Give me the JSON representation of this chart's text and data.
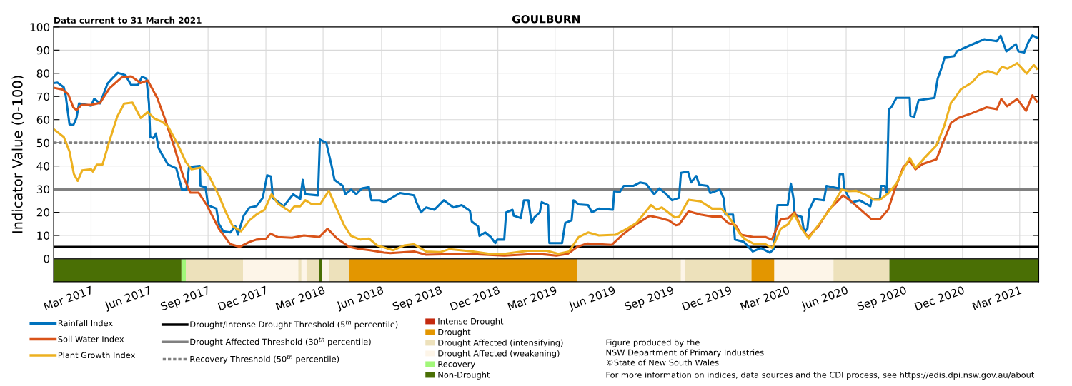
{
  "chart_data": {
    "type": "line",
    "title": "GOULBURN",
    "ylabel": "Indicator Value (0-100)",
    "annotations": [
      "Data current to 31 March 2021",
      "Figure produced by the\nNSW Department of Primary Industries\n©State of New South Wales",
      "For more information on indices, data sources and the CDI process, see https://edis.dpi.nsw.gov.au/about"
    ],
    "xlim": [
      "2017-01-01",
      "2021-03-31"
    ],
    "xticks": [
      {
        "value": "2017-03-01",
        "label": "Mar 2017"
      },
      {
        "value": "2017-06-01",
        "label": "Jun 2017"
      },
      {
        "value": "2017-09-01",
        "label": "Sep 2017"
      },
      {
        "value": "2017-12-01",
        "label": "Dec 2017"
      },
      {
        "value": "2018-03-01",
        "label": "Mar 2018"
      },
      {
        "value": "2018-06-01",
        "label": "Jun 2018"
      },
      {
        "value": "2018-09-01",
        "label": "Sep 2018"
      },
      {
        "value": "2018-12-01",
        "label": "Dec 2018"
      },
      {
        "value": "2019-03-01",
        "label": "Mar 2019"
      },
      {
        "value": "2019-06-01",
        "label": "Jun 2019"
      },
      {
        "value": "2019-09-01",
        "label": "Sep 2019"
      },
      {
        "value": "2019-12-01",
        "label": "Dec 2019"
      },
      {
        "value": "2020-03-01",
        "label": "Mar 2020"
      },
      {
        "value": "2020-06-01",
        "label": "Jun 2020"
      },
      {
        "value": "2020-09-01",
        "label": "Sep 2020"
      },
      {
        "value": "2020-12-01",
        "label": "Dec 2020"
      },
      {
        "value": "2021-03-01",
        "label": "Mar 2021"
      }
    ],
    "ylim": [
      -10,
      100
    ],
    "yticks": [
      {
        "value": -5,
        "label": null
      },
      0,
      10,
      20,
      30,
      40,
      50,
      60,
      70,
      80,
      90,
      100
    ],
    "grid": true,
    "legend": "bottom",
    "line_style": "solid",
    "marker": "none",
    "series": [
      {
        "name": "Rainfall Index",
        "color": "#0072bd",
        "x": [
          "2017-01-01",
          "2017-01-07",
          "2017-01-17",
          "2017-01-20",
          "2017-01-26",
          "2017-02-01",
          "2017-02-06",
          "2017-02-10",
          "2017-03-01",
          "2017-03-06",
          "2017-03-15",
          "2017-03-27",
          "2017-04-03",
          "2017-04-12",
          "2017-04-24",
          "2017-05-03",
          "2017-05-14",
          "2017-05-20",
          "2017-05-27",
          "2017-05-31",
          "2017-06-02",
          "2017-06-07",
          "2017-06-11",
          "2017-06-15",
          "2017-06-20",
          "2017-06-30",
          "2017-07-13",
          "2017-07-22",
          "2017-07-29",
          "2017-08-02",
          "2017-08-19",
          "2017-08-20",
          "2017-08-28",
          "2017-09-01",
          "2017-09-14",
          "2017-09-18",
          "2017-09-25",
          "2017-10-06",
          "2017-10-14",
          "2017-10-18",
          "2017-10-27",
          "2017-11-05",
          "2017-11-16",
          "2017-11-26",
          "2017-12-03",
          "2017-12-09",
          "2017-12-12",
          "2017-12-24",
          "2017-12-29",
          "2018-01-13",
          "2018-01-24",
          "2018-01-28",
          "2018-02-01",
          "2018-02-21",
          "2018-02-24",
          "2018-03-06",
          "2018-03-14",
          "2018-03-19",
          "2018-04-01",
          "2018-04-05",
          "2018-04-14",
          "2018-04-22",
          "2018-05-01",
          "2018-05-12",
          "2018-05-16",
          "2018-05-29",
          "2018-06-05",
          "2018-06-20",
          "2018-06-30",
          "2018-07-22",
          "2018-07-26",
          "2018-08-02",
          "2018-08-10",
          "2018-08-23",
          "2018-09-07",
          "2018-09-22",
          "2018-10-05",
          "2018-10-18",
          "2018-10-21",
          "2018-10-31",
          "2018-11-02",
          "2018-11-11",
          "2018-11-20",
          "2018-11-27",
          "2018-11-30",
          "2018-12-11",
          "2018-12-14",
          "2018-12-24",
          "2018-12-26",
          "2019-01-06",
          "2019-01-11",
          "2019-01-18",
          "2019-01-23",
          "2019-01-28",
          "2019-02-05",
          "2019-02-08",
          "2019-02-18",
          "2019-02-20",
          "2019-03-12",
          "2019-03-17",
          "2019-03-27",
          "2019-03-30",
          "2019-04-07",
          "2019-04-22",
          "2019-04-28",
          "2019-05-09",
          "2019-05-31",
          "2019-06-02",
          "2019-06-11",
          "2019-06-17",
          "2019-07-02",
          "2019-07-13",
          "2019-07-22",
          "2019-08-04",
          "2019-08-12",
          "2019-08-21",
          "2019-09-01",
          "2019-09-12",
          "2019-09-15",
          "2019-09-26",
          "2019-10-01",
          "2019-10-09",
          "2019-10-14",
          "2019-10-27",
          "2019-10-31",
          "2019-11-15",
          "2019-11-21",
          "2019-11-24",
          "2019-12-06",
          "2019-12-09",
          "2019-12-23",
          "2020-01-06",
          "2020-01-19",
          "2020-02-02",
          "2020-02-08",
          "2020-02-14",
          "2020-03-01",
          "2020-03-06",
          "2020-03-10",
          "2020-03-12",
          "2020-03-23",
          "2020-03-27",
          "2020-04-01",
          "2020-04-04",
          "2020-04-12",
          "2020-04-27",
          "2020-05-01",
          "2020-05-20",
          "2020-05-22",
          "2020-05-27",
          "2020-05-29",
          "2020-06-09",
          "2020-06-22",
          "2020-07-09",
          "2020-07-11",
          "2020-07-24",
          "2020-07-26",
          "2020-08-01",
          "2020-08-04",
          "2020-08-07",
          "2020-08-12",
          "2020-08-19",
          "2020-09-09",
          "2020-09-10",
          "2020-09-16",
          "2020-09-23",
          "2020-10-18",
          "2020-10-23",
          "2020-10-29",
          "2020-11-03",
          "2020-11-18",
          "2020-11-22",
          "2020-12-13",
          "2021-01-04",
          "2021-01-24",
          "2021-01-30",
          "2021-02-08",
          "2021-02-23",
          "2021-02-27",
          "2021-03-08",
          "2021-03-14",
          "2021-03-21",
          "2021-03-28"
        ],
        "values": [
          75.8,
          76,
          74,
          70.5,
          58,
          57.6,
          60.7,
          67,
          66,
          69,
          67,
          75.6,
          77.7,
          80.2,
          79.2,
          75,
          75,
          78.5,
          77.7,
          67,
          52.5,
          52,
          54,
          47.8,
          45.3,
          40.6,
          39,
          29.8,
          29.8,
          39.6,
          40,
          31.4,
          30.9,
          23,
          21.6,
          15,
          11.8,
          11.3,
          13.9,
          10.3,
          18.5,
          22,
          22.6,
          26.2,
          36,
          35.5,
          26.2,
          23.7,
          22.6,
          27.8,
          25.7,
          34,
          27.8,
          27.3,
          51.4,
          50,
          40.6,
          34,
          31.4,
          27.8,
          29.8,
          27.8,
          30.3,
          30.9,
          25.2,
          25.2,
          24.2,
          26.7,
          28.3,
          27.3,
          24.2,
          20,
          22.1,
          21.1,
          25.2,
          22.1,
          23.1,
          20.6,
          16,
          13.9,
          9.8,
          11.3,
          9.3,
          6.7,
          8.2,
          8.2,
          20,
          21.1,
          18.5,
          17.5,
          25.2,
          25.2,
          15.4,
          18,
          20,
          24.4,
          23.1,
          6.7,
          6.7,
          15.4,
          16.5,
          25.2,
          23.4,
          23.1,
          20,
          21.6,
          21.1,
          29.1,
          28.8,
          31.4,
          31.4,
          32.9,
          32.4,
          27.8,
          30.3,
          28.3,
          25.2,
          26.2,
          37,
          37.6,
          32.9,
          35.7,
          31.9,
          31.4,
          28.3,
          29.8,
          26.2,
          19,
          19,
          8.2,
          7.2,
          3.1,
          4.6,
          2.6,
          4.1,
          23.1,
          23.1,
          32.4,
          26.2,
          19,
          18,
          11.3,
          12.9,
          21.1,
          25.7,
          25.2,
          31.4,
          30.3,
          36.5,
          36.5,
          30.3,
          24.2,
          25.2,
          22.6,
          25.7,
          25.7,
          31.4,
          31.4,
          28.3,
          64.3,
          65.8,
          69.4,
          69.4,
          61.7,
          61.2,
          68.4,
          69.4,
          77.7,
          82.3,
          86.9,
          87.4,
          89.5,
          92.1,
          94.7,
          93.9,
          96.2,
          89.5,
          92.6,
          89.5,
          89,
          93.1,
          96.4,
          95.4
        ]
      },
      {
        "name": "Soil Water Index",
        "color": "#d95319",
        "x": [
          "2017-01-01",
          "2017-01-15",
          "2017-01-24",
          "2017-02-01",
          "2017-02-06",
          "2017-02-14",
          "2017-03-01",
          "2017-03-15",
          "2017-03-30",
          "2017-04-18",
          "2017-05-03",
          "2017-05-18",
          "2017-05-29",
          "2017-06-13",
          "2017-06-24",
          "2017-07-09",
          "2017-07-24",
          "2017-08-04",
          "2017-08-17",
          "2017-08-30",
          "2017-09-18",
          "2017-10-06",
          "2017-10-21",
          "2017-11-05",
          "2017-11-16",
          "2017-12-01",
          "2017-12-08",
          "2017-12-20",
          "2018-01-11",
          "2018-01-30",
          "2018-02-23",
          "2018-03-08",
          "2018-03-23",
          "2018-04-11",
          "2018-04-29",
          "2018-05-14",
          "2018-06-05",
          "2018-06-15",
          "2018-07-22",
          "2018-08-10",
          "2018-10-12",
          "2018-12-11",
          "2019-02-01",
          "2019-03-03",
          "2019-03-21",
          "2019-04-05",
          "2019-04-20",
          "2019-05-29",
          "2019-06-15",
          "2019-07-07",
          "2019-07-28",
          "2019-08-14",
          "2019-08-27",
          "2019-09-07",
          "2019-09-12",
          "2019-09-27",
          "2019-10-16",
          "2019-11-03",
          "2019-11-17",
          "2019-11-28",
          "2019-12-10",
          "2019-12-19",
          "2020-01-07",
          "2020-01-26",
          "2020-02-05",
          "2020-02-19",
          "2020-03-02",
          "2020-03-12",
          "2020-03-21",
          "2020-04-02",
          "2020-04-18",
          "2020-05-05",
          "2020-05-20",
          "2020-05-27",
          "2020-06-09",
          "2020-06-26",
          "2020-07-11",
          "2020-07-24",
          "2020-08-06",
          "2020-08-17",
          "2020-08-30",
          "2020-09-09",
          "2020-09-18",
          "2020-09-29",
          "2020-10-21",
          "2020-10-31",
          "2020-11-13",
          "2020-11-24",
          "2020-12-16",
          "2021-01-08",
          "2021-01-24",
          "2021-01-31",
          "2021-02-09",
          "2021-02-25",
          "2021-03-11",
          "2021-03-21",
          "2021-03-28"
        ],
        "values": [
          73.8,
          73,
          71,
          65.3,
          64.1,
          66.4,
          66.4,
          67.2,
          73.6,
          78.2,
          78.7,
          75.8,
          76.9,
          69.4,
          61.2,
          48.9,
          35.5,
          28.5,
          28.5,
          23.1,
          12.9,
          6.2,
          5.1,
          7.2,
          8.2,
          8.5,
          10.8,
          9.3,
          9,
          10,
          9.3,
          12.9,
          8.7,
          5.1,
          4.1,
          3.6,
          2.6,
          2.4,
          3.1,
          1.7,
          2.1,
          1.3,
          2.1,
          1.3,
          2.1,
          5.1,
          6.5,
          5.9,
          10.3,
          14.9,
          18.5,
          17.5,
          16.5,
          14.4,
          14.7,
          20.4,
          19,
          18.2,
          18.2,
          15.4,
          14.4,
          10.3,
          9.3,
          9.3,
          8.2,
          17,
          17.5,
          20,
          13.9,
          9.3,
          13.9,
          21.1,
          25.2,
          27.3,
          24.7,
          20.6,
          17,
          17,
          21.1,
          30.3,
          39.6,
          42.2,
          38.6,
          40.8,
          42.9,
          49.9,
          58.6,
          60.7,
          62.8,
          65.3,
          64.5,
          68.9,
          65.8,
          68.9,
          63.8,
          70.5,
          67.9
        ]
      },
      {
        "name": "Plant Growth Index",
        "color": "#edb120",
        "x": [
          "2017-01-01",
          "2017-01-17",
          "2017-01-26",
          "2017-02-02",
          "2017-02-08",
          "2017-02-15",
          "2017-03-01",
          "2017-03-04",
          "2017-03-10",
          "2017-03-19",
          "2017-03-30",
          "2017-04-11",
          "2017-04-22",
          "2017-05-05",
          "2017-05-18",
          "2017-05-29",
          "2017-06-09",
          "2017-06-20",
          "2017-06-30",
          "2017-07-16",
          "2017-07-28",
          "2017-08-06",
          "2017-08-23",
          "2017-09-03",
          "2017-09-18",
          "2017-09-29",
          "2017-10-10",
          "2017-10-23",
          "2017-11-05",
          "2017-11-16",
          "2017-11-29",
          "2017-12-10",
          "2017-12-20",
          "2018-01-08",
          "2018-01-15",
          "2018-01-24",
          "2018-02-01",
          "2018-02-10",
          "2018-02-25",
          "2018-03-10",
          "2018-03-23",
          "2018-04-03",
          "2018-04-14",
          "2018-04-29",
          "2018-05-12",
          "2018-05-25",
          "2018-06-05",
          "2018-06-19",
          "2018-07-07",
          "2018-07-22",
          "2018-08-10",
          "2018-09-01",
          "2018-09-16",
          "2018-10-23",
          "2018-11-18",
          "2018-12-11",
          "2019-01-17",
          "2019-02-16",
          "2019-03-06",
          "2019-03-23",
          "2019-04-07",
          "2019-04-22",
          "2019-05-09",
          "2019-06-04",
          "2019-06-22",
          "2019-07-07",
          "2019-07-30",
          "2019-08-08",
          "2019-08-16",
          "2019-09-05",
          "2019-09-12",
          "2019-09-27",
          "2019-10-16",
          "2019-11-03",
          "2019-11-17",
          "2019-11-25",
          "2019-12-06",
          "2019-12-15",
          "2019-12-24",
          "2020-01-09",
          "2020-01-26",
          "2020-02-06",
          "2020-02-19",
          "2020-03-02",
          "2020-03-11",
          "2020-03-23",
          "2020-04-03",
          "2020-04-22",
          "2020-05-10",
          "2020-05-25",
          "2020-06-05",
          "2020-06-17",
          "2020-07-02",
          "2020-07-15",
          "2020-07-24",
          "2020-08-06",
          "2020-08-19",
          "2020-08-30",
          "2020-09-09",
          "2020-09-18",
          "2020-10-03",
          "2020-10-21",
          "2020-11-02",
          "2020-11-13",
          "2020-11-20",
          "2020-11-28",
          "2020-12-16",
          "2020-12-27",
          "2021-01-10",
          "2021-01-24",
          "2021-02-01",
          "2021-02-10",
          "2021-02-25",
          "2021-03-12",
          "2021-03-23",
          "2021-03-28"
        ],
        "values": [
          55.9,
          52.5,
          46.3,
          36.5,
          33.6,
          38.1,
          38.6,
          37.6,
          40.6,
          40.6,
          50.9,
          61.2,
          66.9,
          67.4,
          60.7,
          63.3,
          60.4,
          59.2,
          57.1,
          48.9,
          41.7,
          38.6,
          39.4,
          35.5,
          27.3,
          20,
          13.9,
          11.8,
          16.5,
          19,
          21.1,
          27.8,
          23.7,
          20.3,
          22.6,
          22.6,
          25.2,
          23.7,
          23.7,
          29.3,
          21.1,
          14.4,
          9.8,
          8.2,
          8.7,
          5.7,
          4.8,
          3.6,
          5.7,
          6.2,
          3.1,
          2.8,
          4.1,
          3.1,
          2.1,
          2.1,
          3.4,
          3.4,
          2.1,
          3.1,
          9.3,
          11.3,
          10,
          10.3,
          12.9,
          15.4,
          23.1,
          21.1,
          22.1,
          17.8,
          18,
          25.4,
          24.7,
          21.6,
          21.6,
          19.5,
          15.4,
          11.3,
          8.5,
          6.2,
          6.2,
          4.6,
          12.9,
          14.9,
          19.2,
          12.9,
          8.7,
          15.9,
          22.6,
          29.8,
          29.1,
          29.3,
          27.5,
          25.4,
          25.4,
          28.1,
          32.4,
          38.6,
          43.5,
          39.1,
          43.7,
          48.9,
          57.1,
          67.4,
          69.7,
          73,
          76.1,
          79.5,
          81,
          79.7,
          82.8,
          82,
          84.4,
          79.9,
          83.6,
          82
        ]
      },
      {
        "name": "Intense Drought",
        "type": "bar",
        "color": "#c4290f"
      }
    ],
    "ref_lines": [
      {
        "axis": "y",
        "value": 5,
        "label": "Drought/Intense Drought Threshold (5$^{th}$ percentile)",
        "color": "#000000",
        "line_style": "solid"
      },
      {
        "axis": "y",
        "value": 30,
        "label": "Drought Affected Threshold (30$^{th}$ percentile)",
        "color": "#808080",
        "line_style": "solid"
      },
      {
        "axis": "y",
        "value": 50,
        "label": "Recovery Threshold (50$^{th}$ percentile)",
        "color": "#808080",
        "line_style": "dotted"
      }
    ],
    "bands": [
      {
        "axis": "x",
        "from": "2018-04-11",
        "to": "2019-04-05",
        "label": "Drought",
        "color": "#e39600"
      },
      {
        "axis": "x",
        "from": "2017-07-28",
        "to": "2017-10-26",
        "label": "Drought Affected (intensifying)",
        "color": "#ede1bb"
      },
      {
        "axis": "x",
        "from": "2017-10-26",
        "to": "2018-01-21",
        "label": "Drought Affected (weakening)",
        "color": "#fdf5e8"
      },
      {
        "axis": "x",
        "from": "2017-07-21",
        "to": "2017-07-28",
        "label": "Recovery",
        "color": "#a2f77a"
      },
      {
        "axis": "x",
        "from": "2017-01-01",
        "to": "2017-07-21",
        "label": "Non-Drought",
        "color": "#4a6f05"
      },
      {
        "axis": "x",
        "from": "2018-01-21",
        "to": "2018-01-26",
        "color": "#ede1bb"
      },
      {
        "axis": "x",
        "from": "2018-01-26",
        "to": "2018-02-03",
        "color": "#fdf5e8"
      },
      {
        "axis": "x",
        "from": "2018-02-03",
        "to": "2018-02-23",
        "color": "#ede1bb"
      },
      {
        "axis": "x",
        "from": "2018-02-23",
        "to": "2018-02-27",
        "color": "#4a6f05"
      },
      {
        "axis": "x",
        "from": "2018-02-27",
        "to": "2018-03-11",
        "color": "#fdf5e8"
      },
      {
        "axis": "x",
        "from": "2018-03-11",
        "to": "2018-04-11",
        "color": "#ede1bb"
      },
      {
        "axis": "x",
        "from": "2019-04-05",
        "to": "2019-09-15",
        "color": "#ede1bb"
      },
      {
        "axis": "x",
        "from": "2019-09-15",
        "to": "2019-09-22",
        "color": "#fdf5e8"
      },
      {
        "axis": "x",
        "from": "2019-09-22",
        "to": "2020-01-04",
        "color": "#ede1bb"
      },
      {
        "axis": "x",
        "from": "2020-01-04",
        "to": "2020-02-09",
        "color": "#e39600"
      },
      {
        "axis": "x",
        "from": "2020-02-09",
        "to": "2020-05-12",
        "color": "#fdf5e8"
      },
      {
        "axis": "x",
        "from": "2020-05-12",
        "to": "2020-08-08",
        "color": "#ede1bb"
      },
      {
        "axis": "x",
        "from": "2020-08-08",
        "to": "2021-03-31",
        "color": "#4a6f05"
      }
    ]
  }
}
